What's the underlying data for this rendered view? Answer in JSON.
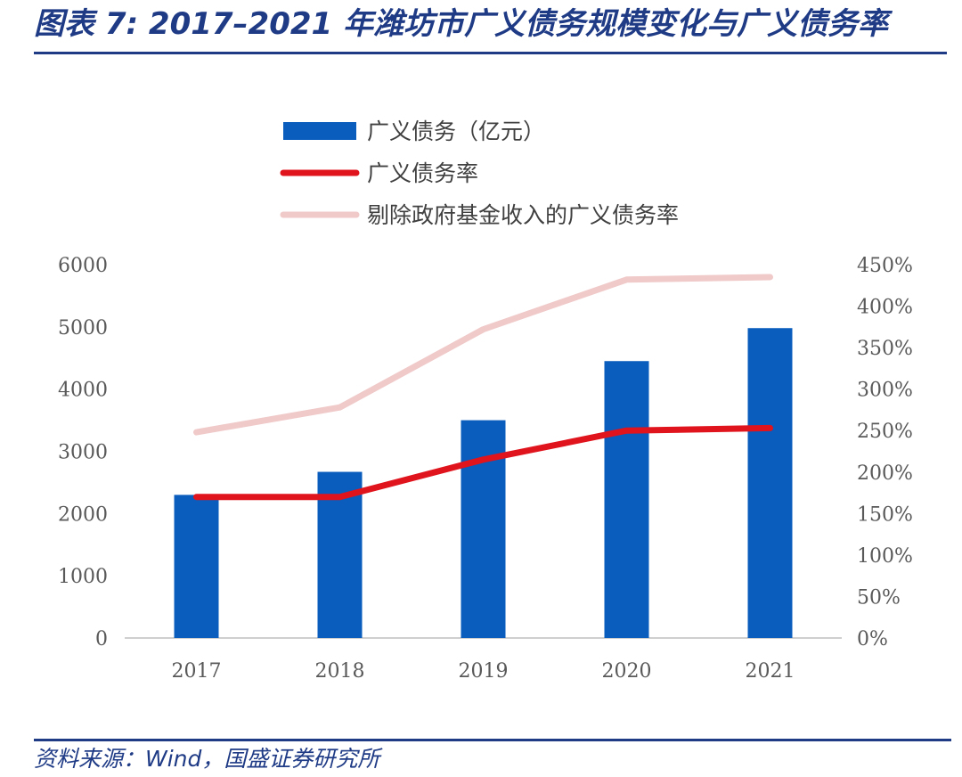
{
  "header": {
    "title": "图表 7: 2017–2021 年潍坊市广义债务规模变化与广义债务率"
  },
  "footer": {
    "source": "资料来源：Wind，国盛证券研究所"
  },
  "colors": {
    "bar": "#0a5cbd",
    "debt_ratio_line": "#e0141d",
    "adjusted_ratio_line": "#f0c9c9",
    "title_blue": "#1f3b86"
  },
  "chart_data": {
    "type": "bar",
    "categories": [
      "2017",
      "2018",
      "2019",
      "2020",
      "2021"
    ],
    "series": [
      {
        "name": "广义债务（亿元）",
        "type": "bar",
        "axis": "left",
        "values": [
          2300,
          2670,
          3500,
          4450,
          4980
        ]
      },
      {
        "name": "广义债务率",
        "type": "line",
        "axis": "right",
        "values": [
          170,
          170,
          215,
          250,
          253
        ]
      },
      {
        "name": "剔除政府基金收入的广义债务率",
        "type": "line",
        "axis": "right",
        "values": [
          248,
          278,
          372,
          432,
          435
        ]
      }
    ],
    "y_left": {
      "ylim": [
        0,
        6000
      ],
      "ticks": [
        "0",
        "1000",
        "2000",
        "3000",
        "4000",
        "5000",
        "6000"
      ]
    },
    "y_right": {
      "ylim": [
        0,
        450
      ],
      "ticks": [
        "0%",
        "50%",
        "100%",
        "150%",
        "200%",
        "250%",
        "300%",
        "350%",
        "400%",
        "450%"
      ]
    },
    "legend_position": "top",
    "grid": false
  }
}
